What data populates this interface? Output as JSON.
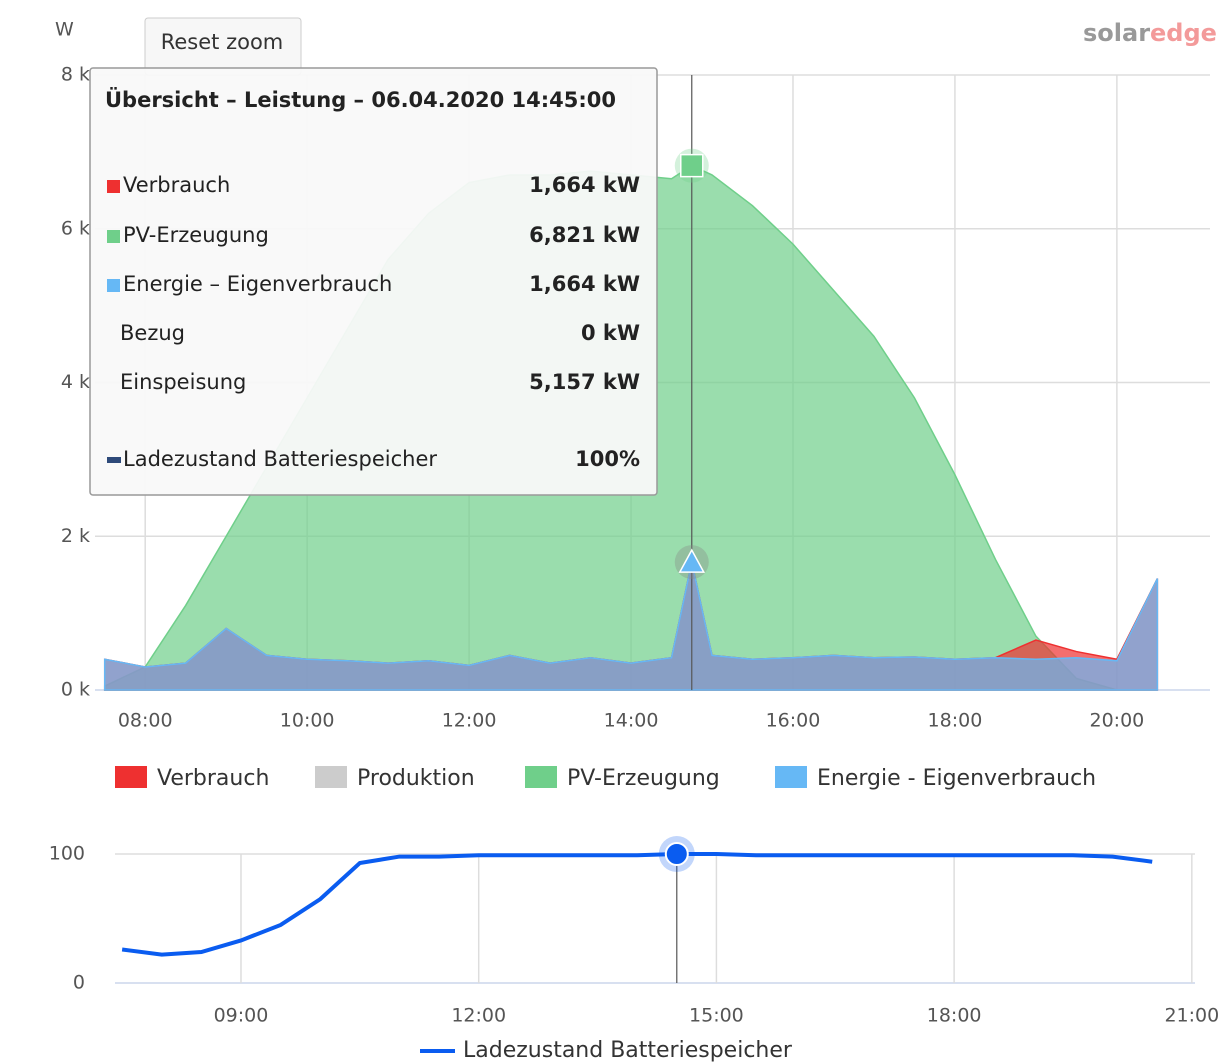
{
  "chart_data": [
    {
      "type": "area",
      "y_axis_title": "W",
      "x": [
        7.5,
        8,
        8.5,
        9,
        9.5,
        10,
        10.5,
        11,
        11.5,
        12,
        12.5,
        13,
        13.5,
        14,
        14.5,
        14.75,
        15,
        15.5,
        16,
        16.5,
        17,
        17.5,
        18,
        18.5,
        19,
        19.5,
        20,
        20.5
      ],
      "xlim": [
        7.38,
        21.15
      ],
      "xticks": [
        {
          "value": 8,
          "label": "08:00"
        },
        {
          "value": 10,
          "label": "10:00"
        },
        {
          "value": 12,
          "label": "12:00"
        },
        {
          "value": 14,
          "label": "14:00"
        },
        {
          "value": 16,
          "label": "16:00"
        },
        {
          "value": 18,
          "label": "18:00"
        },
        {
          "value": 20,
          "label": "20:00"
        }
      ],
      "ylim": [
        0,
        8000
      ],
      "yticks": [
        {
          "value": 0,
          "label": "0 k"
        },
        {
          "value": 2000,
          "label": "2 k"
        },
        {
          "value": 4000,
          "label": "4 k"
        },
        {
          "value": 6000,
          "label": "6 k"
        },
        {
          "value": 8000,
          "label": "8 k"
        }
      ],
      "grid": true,
      "series": [
        {
          "name": "Verbrauch",
          "color": "#ee3030",
          "visible": true,
          "values": [
            400,
            300,
            350,
            800,
            450,
            400,
            380,
            350,
            380,
            320,
            450,
            350,
            420,
            350,
            420,
            1664,
            450,
            400,
            420,
            450,
            420,
            430,
            400,
            420,
            650,
            500,
            400,
            1450
          ]
        },
        {
          "name": "Produktion",
          "color": "#cccccc",
          "visible": false
        },
        {
          "name": "PV-Erzeugung",
          "color": "#6fcf8a",
          "visible": true,
          "values": [
            50,
            300,
            1100,
            2000,
            2900,
            3800,
            4700,
            5600,
            6200,
            6600,
            6700,
            6700,
            6750,
            6700,
            6650,
            6821,
            6700,
            6300,
            5800,
            5200,
            4600,
            3800,
            2800,
            1700,
            700,
            150,
            0,
            0
          ]
        },
        {
          "name": "Energie - Eigenverbrauch",
          "color": "#66b8f5",
          "visible": true,
          "values": [
            400,
            300,
            350,
            800,
            450,
            400,
            380,
            350,
            380,
            320,
            450,
            350,
            420,
            350,
            420,
            1664,
            450,
            400,
            420,
            450,
            420,
            430,
            400,
            420,
            400,
            420,
            380,
            1450
          ]
        }
      ]
    },
    {
      "type": "line",
      "x": [
        7.5,
        8,
        8.5,
        9,
        9.5,
        10,
        10.5,
        11,
        11.5,
        12,
        12.5,
        13,
        13.5,
        14,
        14.5,
        15,
        15.5,
        16,
        16.5,
        17,
        17.5,
        18,
        18.5,
        19,
        19.5,
        20,
        20.5
      ],
      "xlim": [
        7.41,
        21.04
      ],
      "xticks": [
        {
          "value": 9,
          "label": "09:00"
        },
        {
          "value": 12,
          "label": "12:00"
        },
        {
          "value": 15,
          "label": "15:00"
        },
        {
          "value": 18,
          "label": "18:00"
        },
        {
          "value": 21,
          "label": "21:00"
        }
      ],
      "ylim": [
        0,
        100
      ],
      "yticks": [
        0,
        100
      ],
      "grid": true,
      "series": [
        {
          "name": "Ladezustand Batteriespeicher",
          "color": "#0a5cf0",
          "values": [
            26,
            22,
            24,
            33,
            45,
            65,
            93,
            98,
            98,
            99,
            99,
            99,
            99,
            99,
            100,
            100,
            99,
            99,
            99,
            99,
            99,
            99,
            99,
            99,
            99,
            98,
            94
          ]
        }
      ]
    }
  ],
  "reset_zoom": "Reset zoom",
  "logo": [
    "solar",
    "edge"
  ],
  "tooltip": {
    "title": "Übersicht – Leistung – 06.04.2020 14:45:00",
    "rows": [
      {
        "label": "Verbrauch",
        "value": "1,664 kW"
      },
      {
        "label": "PV-Erzeugung",
        "value": "6,821 kW"
      },
      {
        "label": "Energie – Eigenverbrauch",
        "value": "1,664 kW"
      },
      {
        "label": "Bezug",
        "value": "0 kW"
      },
      {
        "label": "Einspeisung",
        "value": "5,157 kW"
      },
      {
        "label": "Ladezustand Batteriespeicher",
        "value": "100%"
      }
    ]
  }
}
